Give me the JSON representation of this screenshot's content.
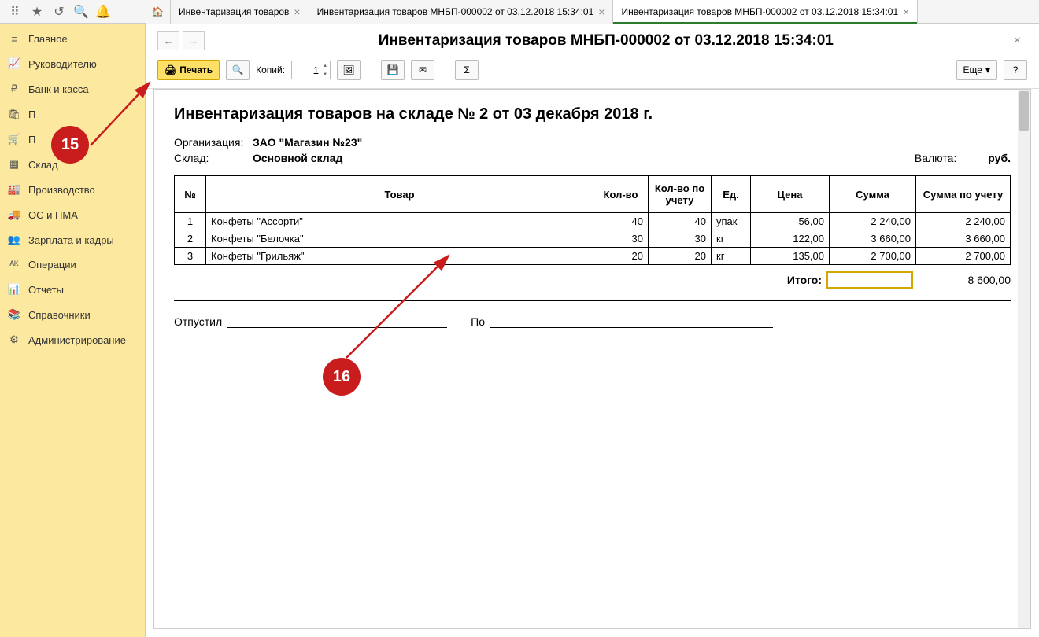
{
  "topIcons": [
    "⠿",
    "★",
    "↺",
    "🔍",
    "🔔"
  ],
  "tabs": [
    {
      "label": "Инвентаризация товаров",
      "close": true
    },
    {
      "label": "Инвентаризация товаров МНБП-000002 от 03.12.2018 15:34:01",
      "close": true
    },
    {
      "label": "Инвентаризация товаров МНБП-000002 от 03.12.2018 15:34:01",
      "close": true,
      "active": true
    }
  ],
  "sidebar": [
    {
      "icon": "≡",
      "label": "Главное"
    },
    {
      "icon": "📈",
      "label": "Руководителю"
    },
    {
      "icon": "₽",
      "label": "Банк и касса"
    },
    {
      "icon": "🛍",
      "label": "П"
    },
    {
      "icon": "🛒",
      "label": "П"
    },
    {
      "icon": "▦",
      "label": "Склад"
    },
    {
      "icon": "🏭",
      "label": "Производство"
    },
    {
      "icon": "🚚",
      "label": "ОС и НМА"
    },
    {
      "icon": "👥",
      "label": "Зарплата и кадры"
    },
    {
      "icon": "ᴬᴷ",
      "label": "Операции"
    },
    {
      "icon": "📊",
      "label": "Отчеты"
    },
    {
      "icon": "📚",
      "label": "Справочники"
    },
    {
      "icon": "⚙",
      "label": "Администрирование"
    }
  ],
  "docTitle": "Инвентаризация товаров МНБП-000002 от 03.12.2018 15:34:01",
  "toolbar": {
    "print": "Печать",
    "copiesLabel": "Копий:",
    "copiesValue": "1",
    "more": "Еще",
    "help": "?"
  },
  "report": {
    "heading": "Инвентаризация товаров на складе № 2 от 03 декабря 2018 г.",
    "orgLabel": "Организация:",
    "orgValue": "ЗАО \"Магазин №23\"",
    "whLabel": "Склад:",
    "whValue": "Основной склад",
    "curLabel": "Валюта:",
    "curValue": "руб.",
    "columns": [
      "№",
      "Товар",
      "Кол-во",
      "Кол-во по учету",
      "Ед.",
      "Цена",
      "Сумма",
      "Сумма по учету"
    ],
    "rows": [
      {
        "n": "1",
        "name": "Конфеты \"Ассорти\"",
        "qty": "40",
        "qtyAcc": "40",
        "unit": "упак",
        "price": "56,00",
        "sum": "2 240,00",
        "sumAcc": "2 240,00"
      },
      {
        "n": "2",
        "name": "Конфеты \"Белочка\"",
        "qty": "30",
        "qtyAcc": "30",
        "unit": "кг",
        "price": "122,00",
        "sum": "3 660,00",
        "sumAcc": "3 660,00"
      },
      {
        "n": "3",
        "name": "Конфеты \"Грильяж\"",
        "qty": "20",
        "qtyAcc": "20",
        "unit": "кг",
        "price": "135,00",
        "sum": "2 700,00",
        "sumAcc": "2 700,00"
      }
    ],
    "totalLabel": "Итого:",
    "totalValue": "8 600,00",
    "releasedLabel": "Отпустил",
    "byLabel": "По"
  },
  "callouts": {
    "c15": "15",
    "c16": "16"
  }
}
